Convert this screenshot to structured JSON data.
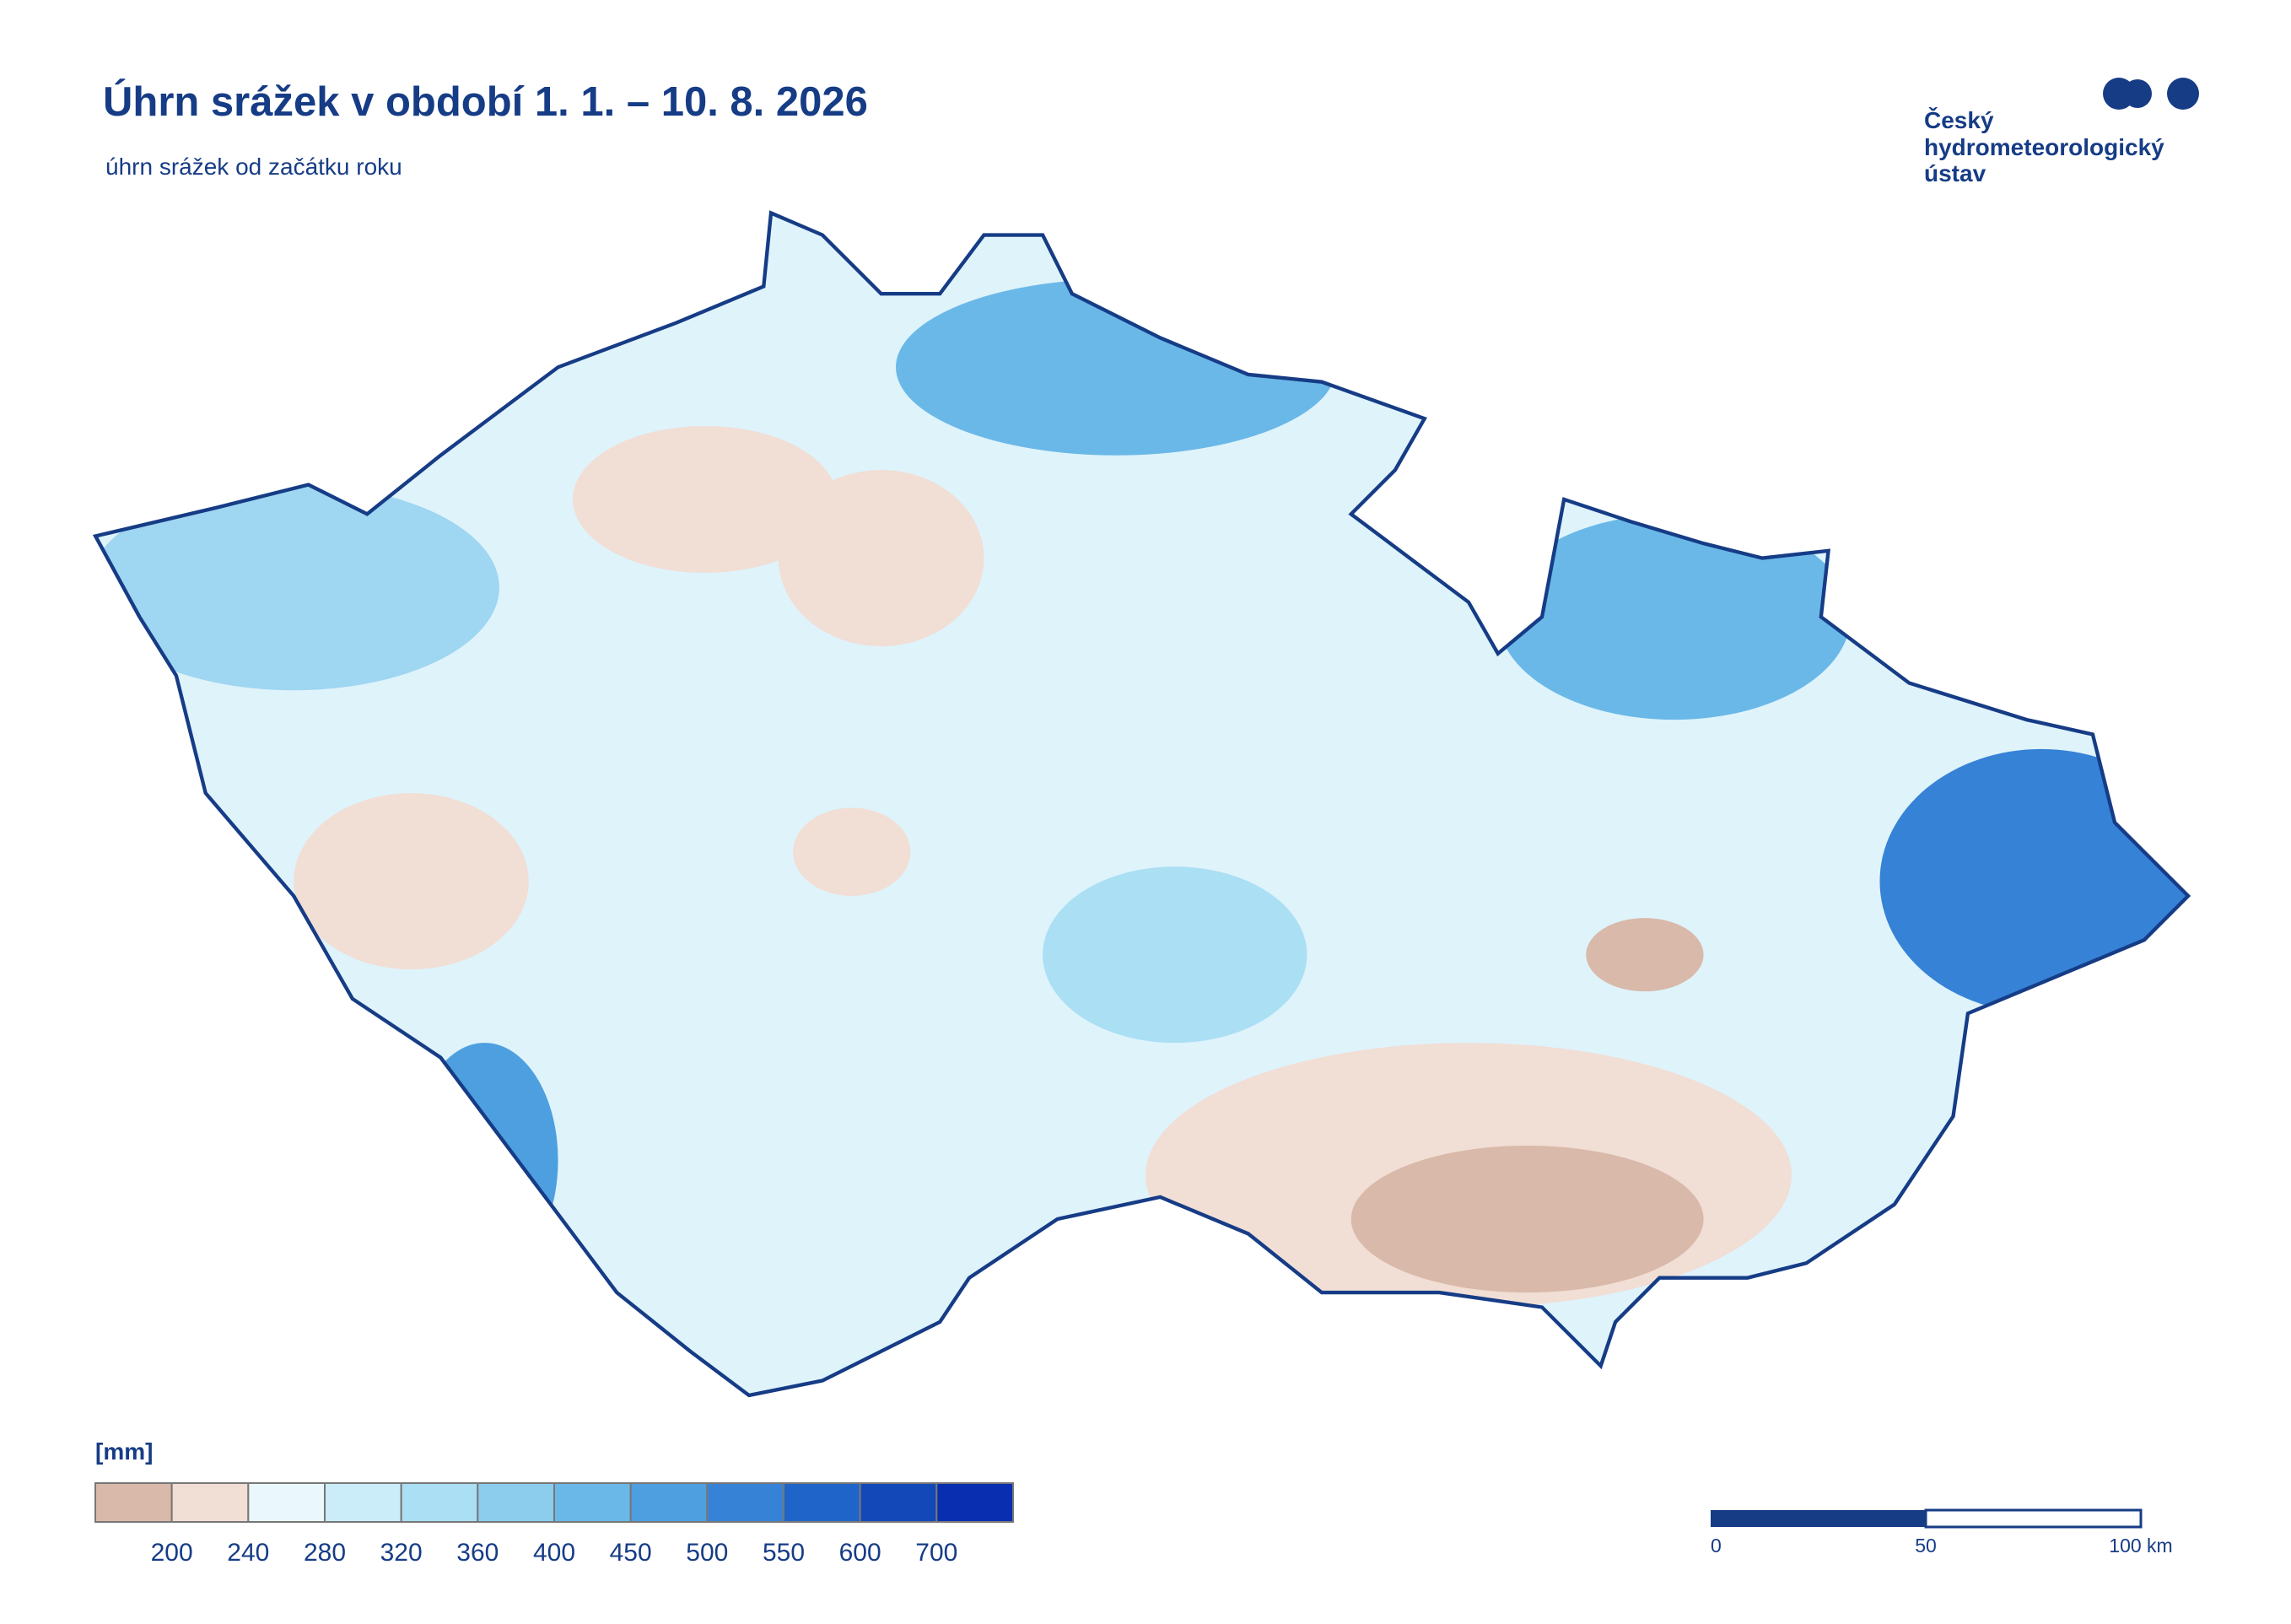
{
  "header": {
    "title": "Úhrn srážek v období 1. 1. – 10. 8. 2026",
    "subtitle": "úhrn srážek od začátku roku"
  },
  "logo": {
    "lines": [
      "Český",
      "hydrometeorologický",
      "ústav"
    ]
  },
  "legend": {
    "unit": "[mm]",
    "colors": [
      "#d9b9aa",
      "#f1ded5",
      "#eaf8fd",
      "#cbedf9",
      "#aadff4",
      "#8ccdee",
      "#6ab8e8",
      "#4d9fe0",
      "#3682d6",
      "#1f64c8",
      "#1248b8",
      "#0a2eb0"
    ],
    "labels": [
      200,
      240,
      280,
      320,
      360,
      400,
      450,
      500,
      550,
      600,
      700
    ]
  },
  "scalebar": {
    "labels": [
      "0",
      "50",
      "100 km"
    ]
  }
}
